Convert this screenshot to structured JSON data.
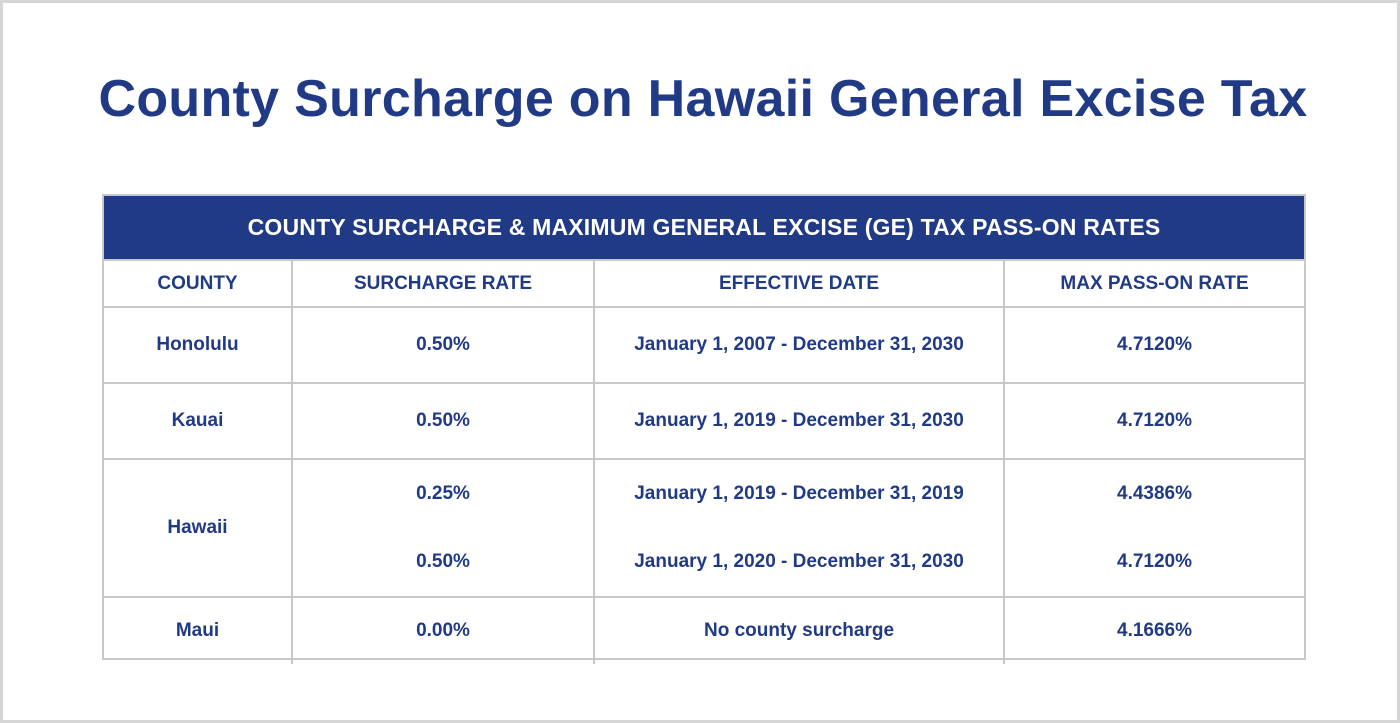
{
  "title": "County Surcharge on Hawaii General Excise Tax",
  "table": {
    "banner": "COUNTY SURCHARGE & MAXIMUM GENERAL EXCISE (GE) TAX PASS-ON RATES",
    "headers": {
      "county": "COUNTY",
      "surcharge_rate": "SURCHARGE RATE",
      "effective_date": "EFFECTIVE DATE",
      "max_pass_on_rate": "MAX PASS-ON RATE"
    },
    "rows": [
      {
        "county": "Honolulu",
        "entries": [
          {
            "surcharge_rate": "0.50%",
            "effective_date": "January 1, 2007 - December 31, 2030",
            "max_pass_on_rate": "4.7120%"
          }
        ]
      },
      {
        "county": "Kauai",
        "entries": [
          {
            "surcharge_rate": "0.50%",
            "effective_date": "January 1, 2019 - December 31, 2030",
            "max_pass_on_rate": "4.7120%"
          }
        ]
      },
      {
        "county": "Hawaii",
        "entries": [
          {
            "surcharge_rate": "0.25%",
            "effective_date": "January 1, 2019 - December 31, 2019",
            "max_pass_on_rate": "4.4386%"
          },
          {
            "surcharge_rate": "0.50%",
            "effective_date": "January 1, 2020 - December 31, 2030",
            "max_pass_on_rate": "4.7120%"
          }
        ]
      },
      {
        "county": "Maui",
        "entries": [
          {
            "surcharge_rate": "0.00%",
            "effective_date": "No county surcharge",
            "max_pass_on_rate": "4.1666%"
          }
        ]
      }
    ]
  },
  "colors": {
    "brand_navy": "#213a85",
    "grid_gray": "#c8c8c8",
    "frame_gray": "#d6d6d6",
    "background": "#ffffff"
  }
}
